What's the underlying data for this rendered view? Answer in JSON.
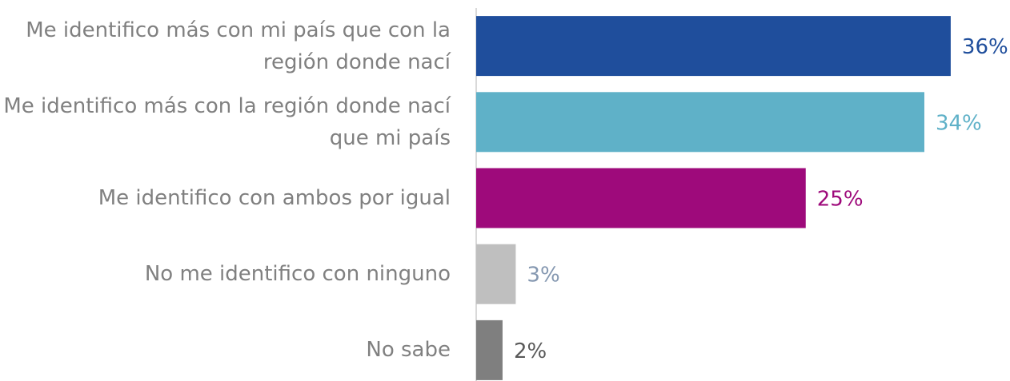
{
  "chart_data": {
    "type": "bar",
    "orientation": "horizontal",
    "categories": [
      "Me identifico más con mi país que con la región donde nací",
      "Me identifico más con la región donde nací que mi país",
      "Me identifico con ambos por igual",
      "No me identifico con ninguno",
      "No sabe"
    ],
    "values": [
      36,
      34,
      25,
      3,
      2
    ],
    "value_labels": [
      "36%",
      "34%",
      "25%",
      "3%",
      "2%"
    ],
    "colors": [
      "#1f4e9c",
      "#5fb1c8",
      "#9e0a7b",
      "#bfbfbf",
      "#7f7f7f"
    ],
    "value_label_colors": [
      "#1f4e9c",
      "#5fb1c8",
      "#9e0a7b",
      "#8497b0",
      "#595959"
    ]
  }
}
